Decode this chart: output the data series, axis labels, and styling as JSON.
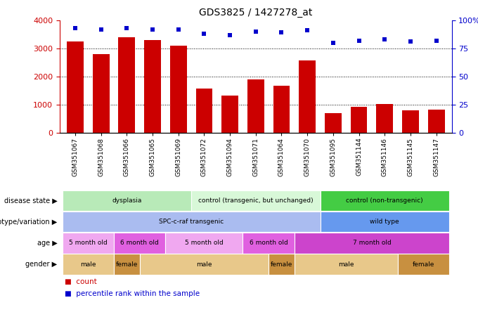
{
  "title": "GDS3825 / 1427278_at",
  "samples": [
    "GSM351067",
    "GSM351068",
    "GSM351066",
    "GSM351065",
    "GSM351069",
    "GSM351072",
    "GSM351094",
    "GSM351071",
    "GSM351064",
    "GSM351070",
    "GSM351095",
    "GSM351144",
    "GSM351146",
    "GSM351145",
    "GSM351147"
  ],
  "counts": [
    3250,
    2800,
    3400,
    3300,
    3100,
    1580,
    1330,
    1900,
    1680,
    2580,
    700,
    930,
    1020,
    800,
    830
  ],
  "percentiles": [
    93,
    92,
    93,
    92,
    92,
    88,
    87,
    90,
    89,
    91,
    80,
    82,
    83,
    81,
    82
  ],
  "bar_color": "#cc0000",
  "dot_color": "#0000cc",
  "ylim_left": [
    0,
    4000
  ],
  "ylim_right": [
    0,
    100
  ],
  "yticks_left": [
    0,
    1000,
    2000,
    3000,
    4000
  ],
  "ytick_labels_left": [
    "0",
    "1000",
    "2000",
    "3000",
    "4000"
  ],
  "yticks_right": [
    0,
    25,
    50,
    75,
    100
  ],
  "ytick_labels_right": [
    "0",
    "25",
    "50",
    "75",
    "100%"
  ],
  "disease_state": {
    "groups": [
      {
        "label": "dysplasia",
        "start": 0,
        "end": 5,
        "color": "#b8eab8"
      },
      {
        "label": "control (transgenic, but unchanged)",
        "start": 5,
        "end": 10,
        "color": "#d8f8d8"
      },
      {
        "label": "control (non-transgenic)",
        "start": 10,
        "end": 15,
        "color": "#44cc44"
      }
    ]
  },
  "genotype": {
    "groups": [
      {
        "label": "SPC-c-raf transgenic",
        "start": 0,
        "end": 10,
        "color": "#aabcf0"
      },
      {
        "label": "wild type",
        "start": 10,
        "end": 15,
        "color": "#6699ee"
      }
    ]
  },
  "age": {
    "groups": [
      {
        "label": "5 month old",
        "start": 0,
        "end": 2,
        "color": "#f0a8f0"
      },
      {
        "label": "6 month old",
        "start": 2,
        "end": 4,
        "color": "#e060e0"
      },
      {
        "label": "5 month old",
        "start": 4,
        "end": 7,
        "color": "#f0a8f0"
      },
      {
        "label": "6 month old",
        "start": 7,
        "end": 9,
        "color": "#e060e0"
      },
      {
        "label": "7 month old",
        "start": 9,
        "end": 15,
        "color": "#cc44cc"
      }
    ]
  },
  "gender": {
    "groups": [
      {
        "label": "male",
        "start": 0,
        "end": 2,
        "color": "#e8c88a"
      },
      {
        "label": "female",
        "start": 2,
        "end": 3,
        "color": "#c89040"
      },
      {
        "label": "male",
        "start": 3,
        "end": 8,
        "color": "#e8c88a"
      },
      {
        "label": "female",
        "start": 8,
        "end": 9,
        "color": "#c89040"
      },
      {
        "label": "male",
        "start": 9,
        "end": 13,
        "color": "#e8c88a"
      },
      {
        "label": "female",
        "start": 13,
        "end": 15,
        "color": "#c89040"
      }
    ]
  },
  "row_labels": [
    "disease state",
    "genotype/variation",
    "age",
    "gender"
  ],
  "row_keys": [
    "disease_state",
    "genotype",
    "age",
    "gender"
  ],
  "legend_count_color": "#cc0000",
  "legend_dot_color": "#0000cc"
}
